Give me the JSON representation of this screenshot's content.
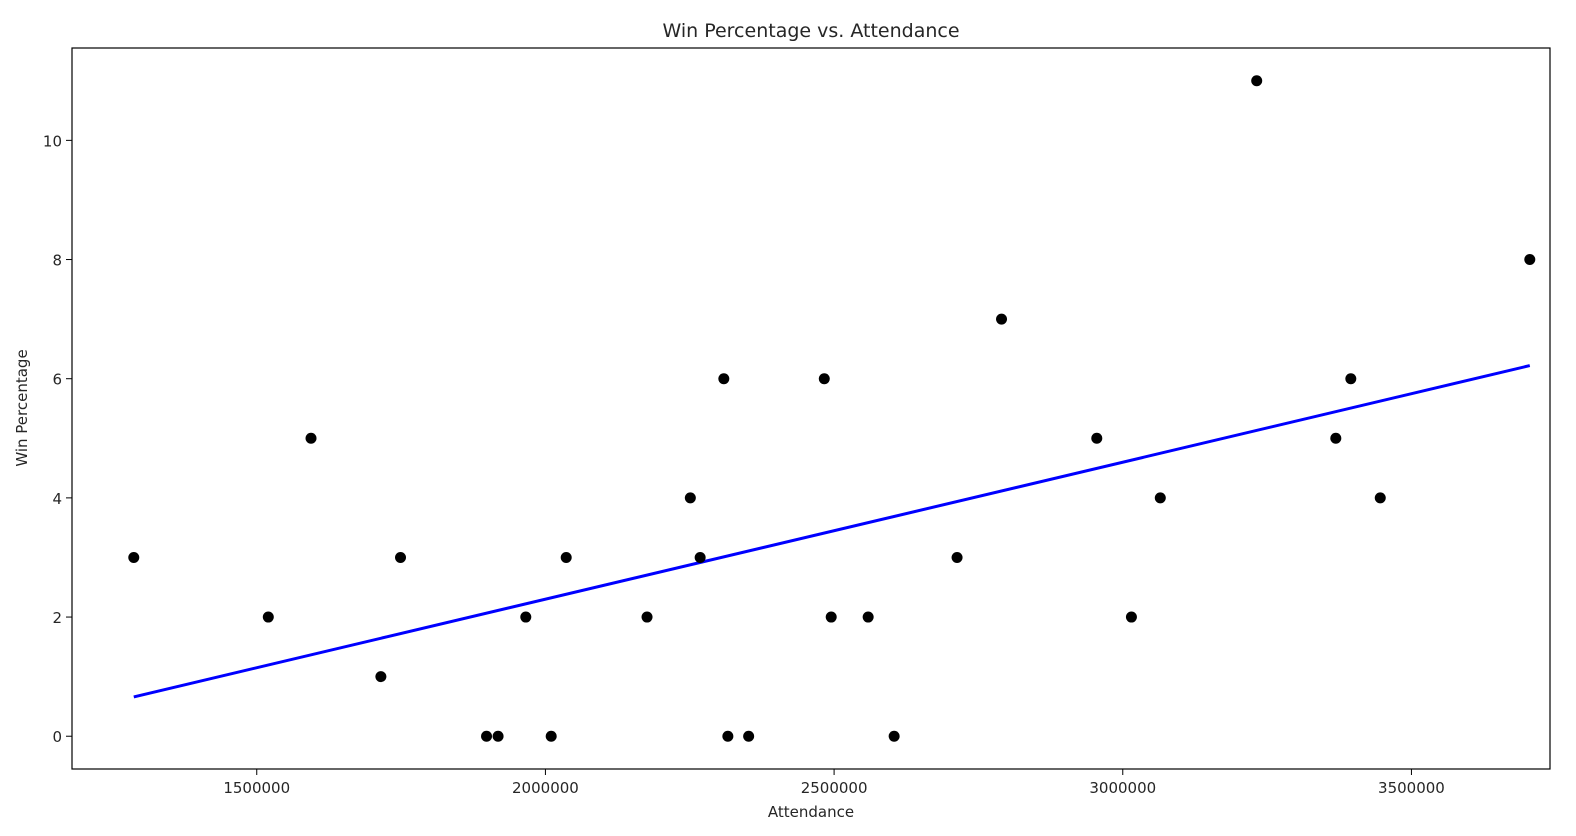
{
  "chart_data": {
    "type": "scatter",
    "title": "Win Percentage vs. Attendance",
    "xlabel": "Attendance",
    "ylabel": "Win Percentage",
    "xlim": [
      1180000,
      3740000
    ],
    "ylim": [
      -0.55,
      11.55
    ],
    "xticks": [
      1500000,
      2000000,
      2500000,
      3000000,
      3500000
    ],
    "xtick_labels": [
      "1500000",
      "2000000",
      "2500000",
      "3000000",
      "3500000"
    ],
    "yticks": [
      0,
      2,
      4,
      6,
      8,
      10
    ],
    "ytick_labels": [
      "0",
      "2",
      "4",
      "6",
      "8",
      "10"
    ],
    "grid": false,
    "series": [
      {
        "type": "scatter",
        "color": "#000000",
        "points": [
          [
            1287000,
            3
          ],
          [
            1520000,
            2
          ],
          [
            1594000,
            5
          ],
          [
            1715000,
            1
          ],
          [
            1749000,
            3
          ],
          [
            1898000,
            0
          ],
          [
            1918000,
            0
          ],
          [
            1966000,
            2
          ],
          [
            2010000,
            0
          ],
          [
            2036000,
            3
          ],
          [
            2176000,
            2
          ],
          [
            2251000,
            4
          ],
          [
            2268000,
            3
          ],
          [
            2309000,
            6
          ],
          [
            2316000,
            0
          ],
          [
            2352000,
            0
          ],
          [
            2483000,
            6
          ],
          [
            2495000,
            2
          ],
          [
            2559000,
            2
          ],
          [
            2604000,
            0
          ],
          [
            2713000,
            3
          ],
          [
            2790000,
            7
          ],
          [
            2955000,
            5
          ],
          [
            3015000,
            2
          ],
          [
            3065000,
            4
          ],
          [
            3232000,
            11
          ],
          [
            3369000,
            5
          ],
          [
            3395000,
            6
          ],
          [
            3446000,
            4
          ],
          [
            3705000,
            8
          ]
        ]
      },
      {
        "type": "line",
        "color": "#0000ff",
        "x": [
          1287000,
          3705000
        ],
        "y": [
          0.66,
          6.22
        ]
      }
    ]
  }
}
